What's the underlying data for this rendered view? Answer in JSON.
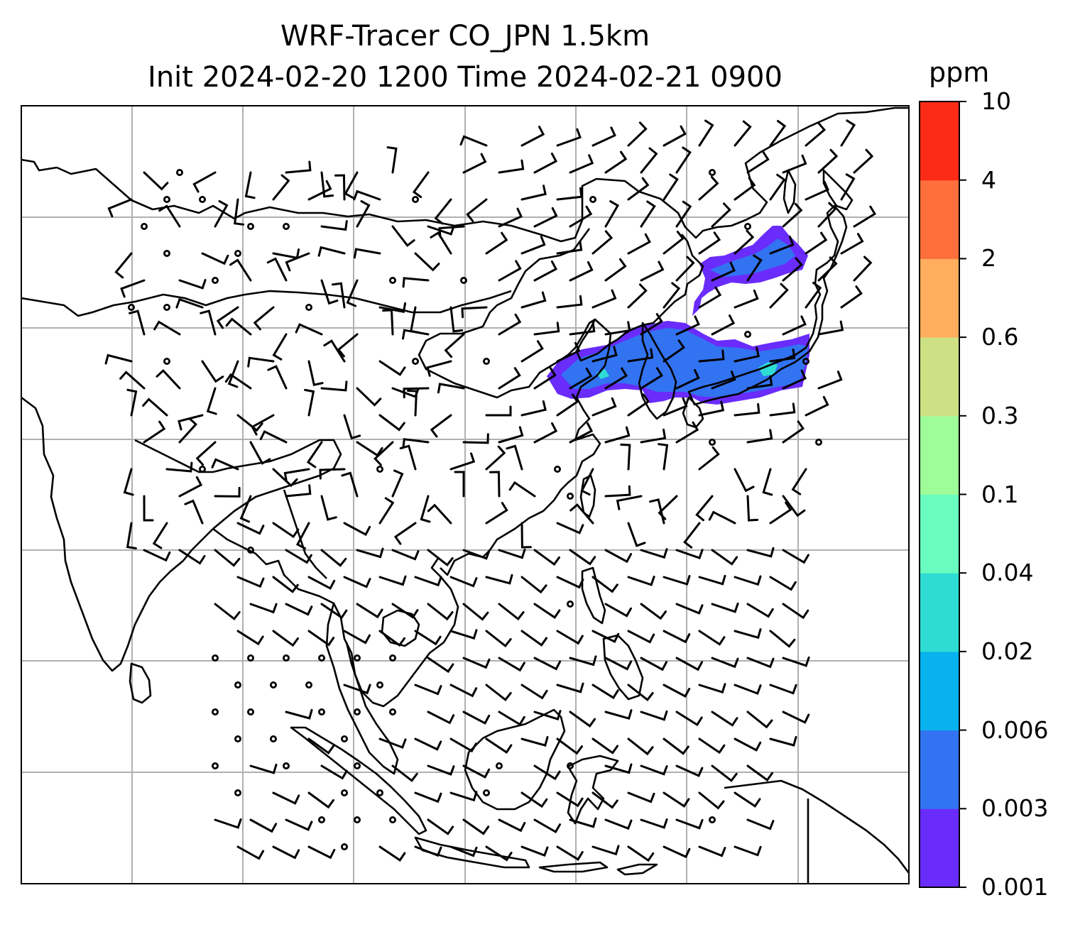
{
  "title": {
    "line1": "WRF-Tracer CO_JPN 1.5km",
    "line2": "Init 2024-02-20 1200 Time 2024-02-21 0900"
  },
  "colorbar": {
    "unit": "ppm",
    "ticks": [
      "0.001",
      "0.003",
      "0.006",
      "0.02",
      "0.04",
      "0.1",
      "0.3",
      "0.6",
      "2",
      "4",
      "10"
    ],
    "colors": [
      "#6a2cfb",
      "#3273f2",
      "#07b2ed",
      "#2fdcd4",
      "#69fcbe",
      "#9efd99",
      "#cde184",
      "#feae5d",
      "#fe6f3b",
      "#fc2b15"
    ]
  },
  "map": {
    "gridlines": true,
    "features": [
      "coastlines",
      "country borders",
      "wind barbs",
      "CO tracer plume"
    ],
    "plume_colors": [
      "#6a2cfb",
      "#3273f2",
      "#2fdcd4"
    ]
  }
}
